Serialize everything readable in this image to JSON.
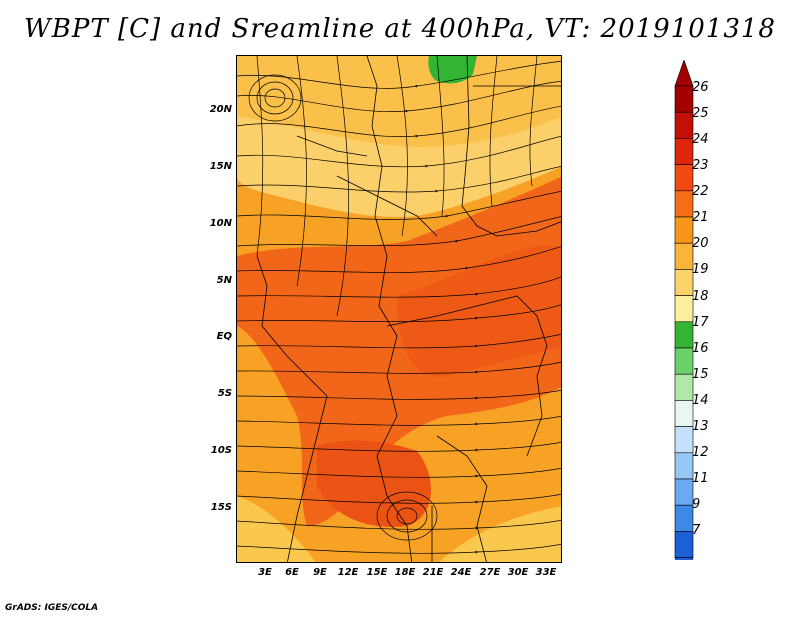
{
  "title": "WBPT [C] and Sreamline at 400hPa, VT: 2019101318",
  "credit": "GrADS: IGES/COLA",
  "map": {
    "lat_labels": [
      "20N",
      "15N",
      "10N",
      "5N",
      "EQ",
      "5S",
      "10S",
      "15S"
    ],
    "lon_labels": [
      "3E",
      "6E",
      "9E",
      "12E",
      "15E",
      "18E",
      "21E",
      "24E",
      "27E",
      "30E",
      "33E"
    ]
  },
  "colorbar": {
    "labels": [
      "26",
      "25",
      "24",
      "23",
      "22",
      "21",
      "20",
      "19",
      "18",
      "17",
      "16",
      "15",
      "14",
      "13",
      "12",
      "11",
      "9",
      "7"
    ],
    "colors": [
      "#a50000",
      "#c41004",
      "#e0260a",
      "#f04a12",
      "#f46e18",
      "#f8961c",
      "#fbb43a",
      "#fbd26c",
      "#fcefa0",
      "#33b533",
      "#6cd06c",
      "#b0e8a8",
      "#e8f8f0",
      "#c4e0fa",
      "#96c8f6",
      "#6aaaf0",
      "#3e88e6",
      "#1c60d8"
    ]
  }
}
